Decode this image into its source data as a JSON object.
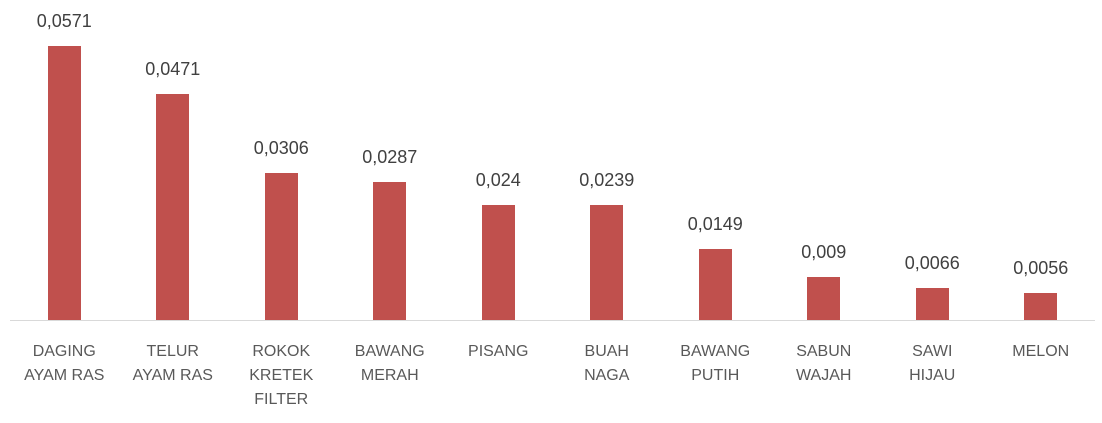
{
  "chart_data": {
    "type": "bar",
    "categories": [
      "DAGING\nAYAM RAS",
      "TELUR\nAYAM RAS",
      "ROKOK\nKRETEK\nFILTER",
      "BAWANG\nMERAH",
      "PISANG",
      "BUAH\nNAGA",
      "BAWANG\nPUTIH",
      "SABUN\nWAJAH",
      "SAWI\nHIJAU",
      "MELON"
    ],
    "values": [
      0.0571,
      0.0471,
      0.0306,
      0.0287,
      0.024,
      0.0239,
      0.0149,
      0.009,
      0.0066,
      0.0056
    ],
    "value_labels": [
      "0,0571",
      "0,0471",
      "0,0306",
      "0,0287",
      "0,024",
      "0,0239",
      "0,0149",
      "0,009",
      "0,0066",
      "0,0056"
    ],
    "color": "#c0504d"
  }
}
